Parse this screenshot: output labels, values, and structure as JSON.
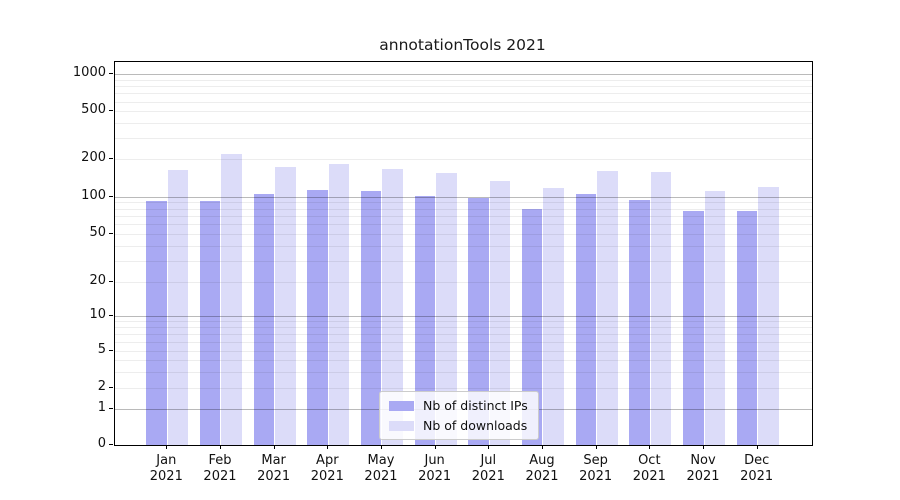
{
  "title": "annotationTools 2021",
  "year_label": "2021",
  "months": [
    "Jan",
    "Feb",
    "Mar",
    "Apr",
    "May",
    "Jun",
    "Jul",
    "Aug",
    "Sep",
    "Oct",
    "Nov",
    "Dec"
  ],
  "chart_data": {
    "type": "bar",
    "title": "annotationTools 2021",
    "categories": [
      "Jan 2021",
      "Feb 2021",
      "Mar 2021",
      "Apr 2021",
      "May 2021",
      "Jun 2021",
      "Jul 2021",
      "Aug 2021",
      "Sep 2021",
      "Oct 2021",
      "Nov 2021",
      "Dec 2021"
    ],
    "series": [
      {
        "name": "Nb of distinct IPs",
        "color": "#a9a9f3",
        "values": [
          93,
          92,
          105,
          113,
          112,
          101,
          98,
          80,
          105,
          94,
          76,
          77
        ]
      },
      {
        "name": "Nb of downloads",
        "color": "#dcdcf9",
        "values": [
          165,
          220,
          172,
          183,
          167,
          155,
          133,
          118,
          160,
          158,
          112,
          120
        ]
      }
    ],
    "xlabel": "",
    "ylabel": "",
    "yscale": "symlog",
    "ylim": [
      0,
      1250
    ],
    "ytick_labels": [
      1000,
      500,
      200,
      100,
      50,
      20,
      10,
      5,
      2,
      1,
      0
    ],
    "grid": true,
    "legend_position": "lower center inside plot"
  },
  "colors": {
    "distinct_ips": "#a9a9f3",
    "downloads": "#dcdcf9",
    "spine": "#000000",
    "major_grid": "rgba(0,0,0,0.27)",
    "minor_grid": "rgba(0,0,0,0.07)",
    "legend_border": "#cccccc"
  }
}
